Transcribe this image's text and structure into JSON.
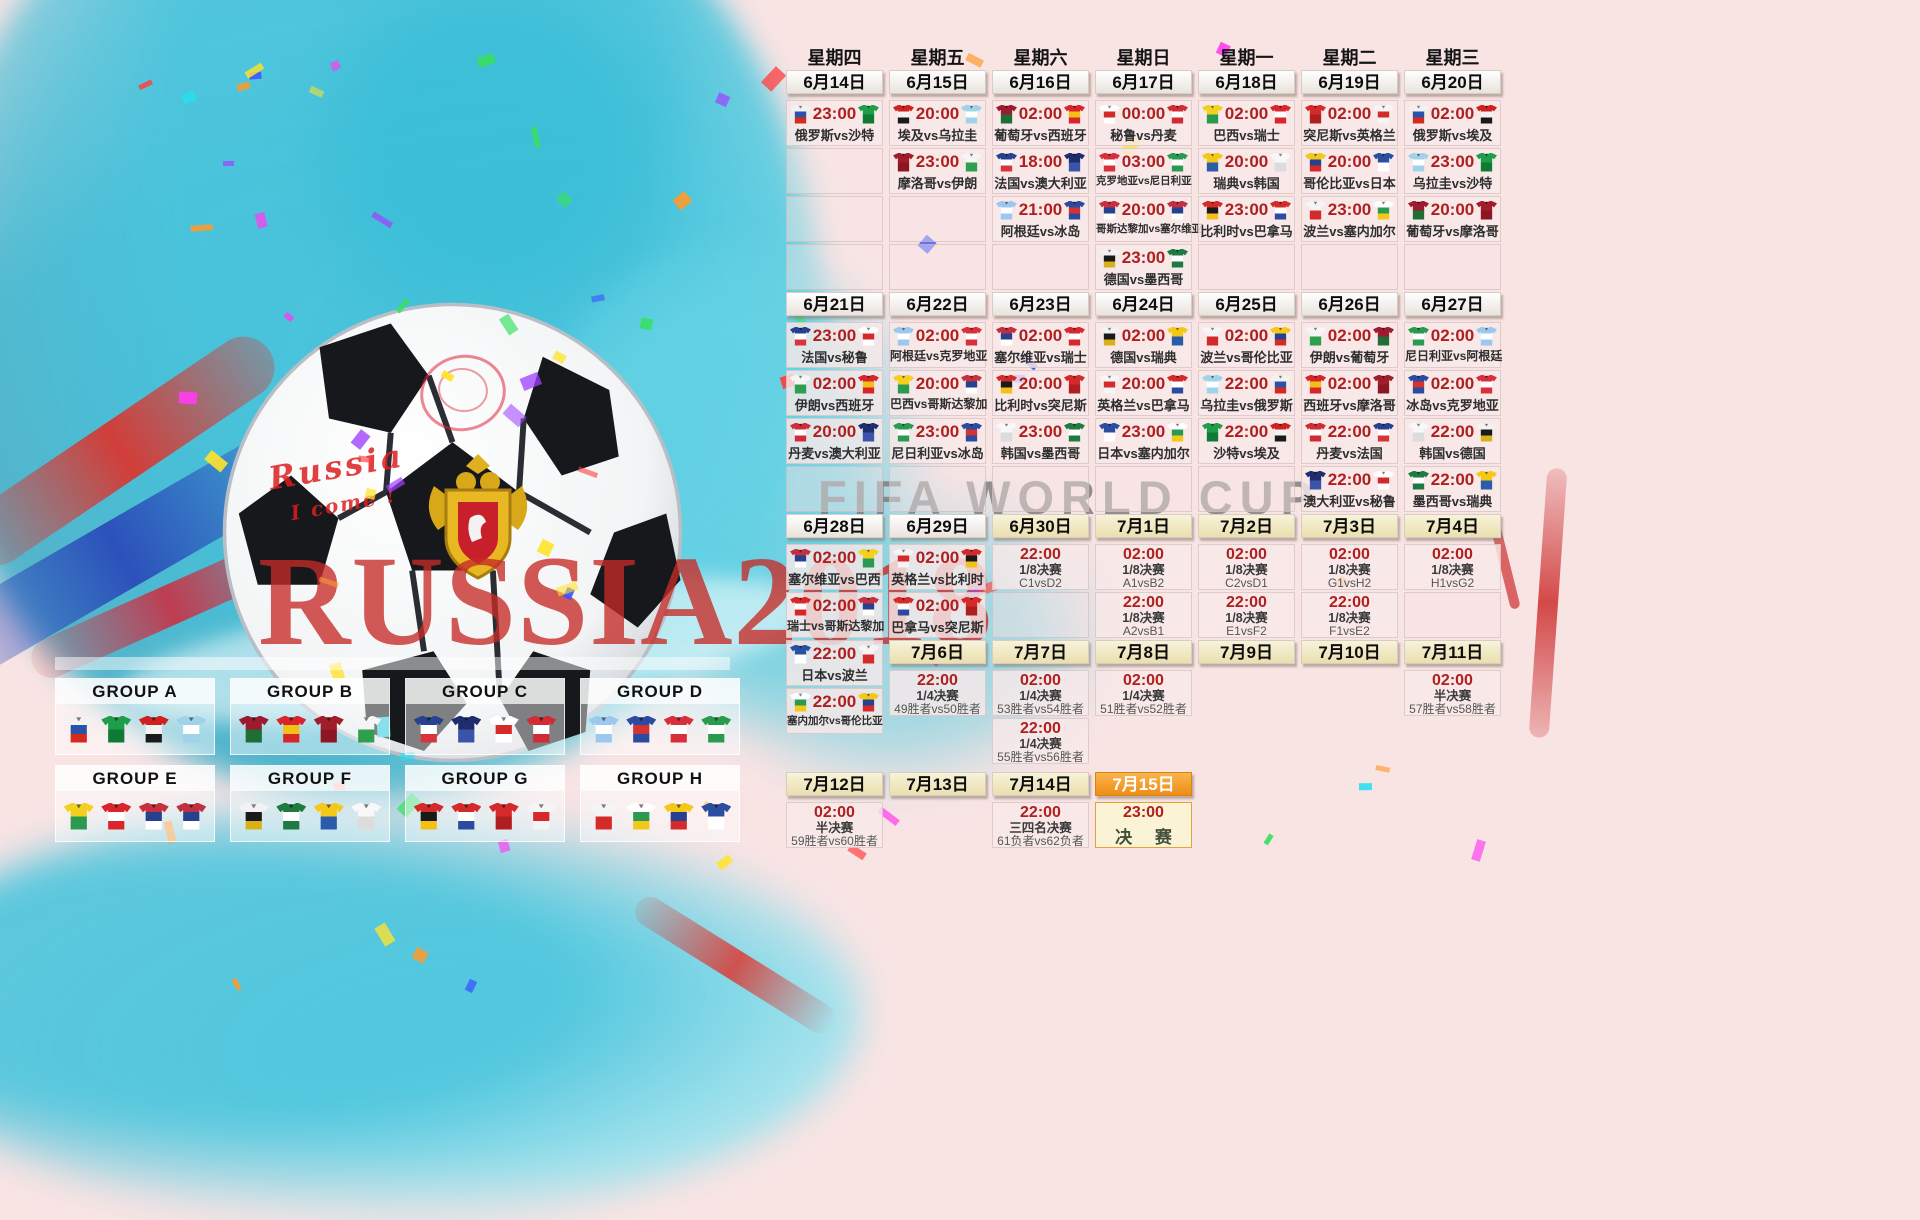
{
  "watermarks": {
    "fifa": "FIFA WORLD CUP",
    "russia": "RUSSIA2018"
  },
  "ball_graffiti": {
    "line1": "Russia",
    "line2": "I come !"
  },
  "groups": [
    {
      "name": "GROUP A",
      "teams": [
        "俄罗斯",
        "沙特",
        "埃及",
        "乌拉圭"
      ]
    },
    {
      "name": "GROUP B",
      "teams": [
        "葡萄牙",
        "西班牙",
        "摩洛哥",
        "伊朗"
      ]
    },
    {
      "name": "GROUP C",
      "teams": [
        "法国",
        "澳大利亚",
        "秘鲁",
        "丹麦"
      ]
    },
    {
      "name": "GROUP D",
      "teams": [
        "阿根廷",
        "冰岛",
        "克罗地亚",
        "尼日利亚"
      ]
    },
    {
      "name": "GROUP E",
      "teams": [
        "巴西",
        "瑞士",
        "哥斯达黎加",
        "塞尔维亚"
      ]
    },
    {
      "name": "GROUP F",
      "teams": [
        "德国",
        "墨西哥",
        "瑞典",
        "韩国"
      ]
    },
    {
      "name": "GROUP G",
      "teams": [
        "比利时",
        "巴拿马",
        "突尼斯",
        "英格兰"
      ]
    },
    {
      "name": "GROUP H",
      "teams": [
        "波兰",
        "塞内加尔",
        "哥伦比亚",
        "日本"
      ]
    }
  ],
  "calendar": {
    "columns": [
      {
        "weekday": "星期四",
        "segments": [
          {
            "t": "date",
            "label": "6月14日",
            "style": "w"
          },
          {
            "t": "match",
            "time": "23:00",
            "home": "俄罗斯",
            "away": "沙特"
          },
          {
            "t": "empty"
          },
          {
            "t": "empty"
          },
          {
            "t": "empty"
          },
          {
            "t": "date",
            "label": "6月21日",
            "style": "w"
          },
          {
            "t": "match",
            "time": "23:00",
            "home": "法国",
            "away": "秘鲁"
          },
          {
            "t": "match",
            "time": "02:00",
            "home": "伊朗",
            "away": "西班牙"
          },
          {
            "t": "match",
            "time": "20:00",
            "home": "丹麦",
            "away": "澳大利亚"
          },
          {
            "t": "empty"
          },
          {
            "t": "date",
            "label": "6月28日",
            "style": "w"
          },
          {
            "t": "match",
            "time": "02:00",
            "home": "塞尔维亚",
            "away": "巴西"
          },
          {
            "t": "match",
            "time": "02:00",
            "home": "瑞士",
            "away": "哥斯达黎加"
          },
          {
            "t": "match",
            "time": "22:00",
            "home": "日本",
            "away": "波兰"
          },
          {
            "t": "match",
            "time": "22:00",
            "home": "塞内加尔",
            "away": "哥伦比亚"
          },
          {
            "t": "week5"
          },
          {
            "t": "date",
            "label": "7月12日",
            "style": "y"
          },
          {
            "t": "ko",
            "time": "02:00",
            "stage": "半决赛",
            "teams": "59胜者vs60胜者"
          }
        ]
      },
      {
        "weekday": "星期五",
        "segments": [
          {
            "t": "date",
            "label": "6月15日",
            "style": "w"
          },
          {
            "t": "match",
            "time": "20:00",
            "home": "埃及",
            "away": "乌拉圭"
          },
          {
            "t": "match",
            "time": "23:00",
            "home": "摩洛哥",
            "away": "伊朗"
          },
          {
            "t": "empty"
          },
          {
            "t": "empty"
          },
          {
            "t": "date",
            "label": "6月22日",
            "style": "w"
          },
          {
            "t": "match",
            "time": "02:00",
            "home": "阿根廷",
            "away": "克罗地亚"
          },
          {
            "t": "match",
            "time": "20:00",
            "home": "巴西",
            "away": "哥斯达黎加"
          },
          {
            "t": "match",
            "time": "23:00",
            "home": "尼日利亚",
            "away": "冰岛"
          },
          {
            "t": "empty"
          },
          {
            "t": "date",
            "label": "6月29日",
            "style": "w"
          },
          {
            "t": "match",
            "time": "02:00",
            "home": "英格兰",
            "away": "比利时"
          },
          {
            "t": "match",
            "time": "02:00",
            "home": "巴拿马",
            "away": "突尼斯"
          },
          {
            "t": "date",
            "label": "7月6日",
            "style": "y"
          },
          {
            "t": "ko",
            "time": "22:00",
            "stage": "1/4决赛",
            "teams": "49胜者vs50胜者"
          },
          {
            "t": "week5"
          },
          {
            "t": "date",
            "label": "7月13日",
            "style": "y"
          }
        ]
      },
      {
        "weekday": "星期六",
        "segments": [
          {
            "t": "date",
            "label": "6月16日",
            "style": "w"
          },
          {
            "t": "match",
            "time": "02:00",
            "home": "葡萄牙",
            "away": "西班牙"
          },
          {
            "t": "match",
            "time": "18:00",
            "home": "法国",
            "away": "澳大利亚"
          },
          {
            "t": "match",
            "time": "21:00",
            "home": "阿根廷",
            "away": "冰岛"
          },
          {
            "t": "empty"
          },
          {
            "t": "date",
            "label": "6月23日",
            "style": "w"
          },
          {
            "t": "match",
            "time": "02:00",
            "home": "塞尔维亚",
            "away": "瑞士"
          },
          {
            "t": "match",
            "time": "20:00",
            "home": "比利时",
            "away": "突尼斯"
          },
          {
            "t": "match",
            "time": "23:00",
            "home": "韩国",
            "away": "墨西哥"
          },
          {
            "t": "empty"
          },
          {
            "t": "date",
            "label": "6月30日",
            "style": "y"
          },
          {
            "t": "ko",
            "time": "22:00",
            "stage": "1/8决赛",
            "teams": "C1vsD2"
          },
          {
            "t": "empty"
          },
          {
            "t": "date",
            "label": "7月7日",
            "style": "y"
          },
          {
            "t": "ko",
            "time": "02:00",
            "stage": "1/4决赛",
            "teams": "53胜者vs54胜者"
          },
          {
            "t": "ko",
            "time": "22:00",
            "stage": "1/4决赛",
            "teams": "55胜者vs56胜者"
          },
          {
            "t": "week5"
          },
          {
            "t": "date",
            "label": "7月14日",
            "style": "y"
          },
          {
            "t": "ko",
            "time": "22:00",
            "stage": "三四名决赛",
            "teams": "61负者vs62负者"
          }
        ]
      },
      {
        "weekday": "星期日",
        "segments": [
          {
            "t": "date",
            "label": "6月17日",
            "style": "w"
          },
          {
            "t": "match",
            "time": "00:00",
            "home": "秘鲁",
            "away": "丹麦"
          },
          {
            "t": "match",
            "time": "03:00",
            "home": "克罗地亚",
            "away": "尼日利亚"
          },
          {
            "t": "match",
            "time": "20:00",
            "home": "哥斯达黎加",
            "away": "塞尔维亚"
          },
          {
            "t": "match",
            "time": "23:00",
            "home": "德国",
            "away": "墨西哥"
          },
          {
            "t": "date",
            "label": "6月24日",
            "style": "w"
          },
          {
            "t": "match",
            "time": "02:00",
            "home": "德国",
            "away": "瑞典"
          },
          {
            "t": "match",
            "time": "20:00",
            "home": "英格兰",
            "away": "巴拿马"
          },
          {
            "t": "match",
            "time": "23:00",
            "home": "日本",
            "away": "塞内加尔"
          },
          {
            "t": "empty"
          },
          {
            "t": "date",
            "label": "7月1日",
            "style": "y"
          },
          {
            "t": "ko",
            "time": "02:00",
            "stage": "1/8决赛",
            "teams": "A1vsB2"
          },
          {
            "t": "ko",
            "time": "22:00",
            "stage": "1/8决赛",
            "teams": "A2vsB1"
          },
          {
            "t": "date",
            "label": "7月8日",
            "style": "y"
          },
          {
            "t": "ko",
            "time": "02:00",
            "stage": "1/4决赛",
            "teams": "51胜者vs52胜者"
          },
          {
            "t": "week5"
          },
          {
            "t": "date",
            "label": "7月15日",
            "style": "o"
          },
          {
            "t": "final",
            "time": "23:00",
            "label": "决 赛"
          }
        ]
      },
      {
        "weekday": "星期一",
        "segments": [
          {
            "t": "date",
            "label": "6月18日",
            "style": "w"
          },
          {
            "t": "match",
            "time": "02:00",
            "home": "巴西",
            "away": "瑞士"
          },
          {
            "t": "match",
            "time": "20:00",
            "home": "瑞典",
            "away": "韩国"
          },
          {
            "t": "match",
            "time": "23:00",
            "home": "比利时",
            "away": "巴拿马"
          },
          {
            "t": "empty"
          },
          {
            "t": "date",
            "label": "6月25日",
            "style": "w"
          },
          {
            "t": "match",
            "time": "02:00",
            "home": "波兰",
            "away": "哥伦比亚"
          },
          {
            "t": "match",
            "time": "22:00",
            "home": "乌拉圭",
            "away": "俄罗斯"
          },
          {
            "t": "match",
            "time": "22:00",
            "home": "沙特",
            "away": "埃及"
          },
          {
            "t": "empty"
          },
          {
            "t": "date",
            "label": "7月2日",
            "style": "y"
          },
          {
            "t": "ko",
            "time": "02:00",
            "stage": "1/8决赛",
            "teams": "C2vsD1"
          },
          {
            "t": "ko",
            "time": "22:00",
            "stage": "1/8决赛",
            "teams": "E1vsF2"
          },
          {
            "t": "date",
            "label": "7月9日",
            "style": "y"
          }
        ]
      },
      {
        "weekday": "星期二",
        "segments": [
          {
            "t": "date",
            "label": "6月19日",
            "style": "w"
          },
          {
            "t": "match",
            "time": "02:00",
            "home": "突尼斯",
            "away": "英格兰"
          },
          {
            "t": "match",
            "time": "20:00",
            "home": "哥伦比亚",
            "away": "日本"
          },
          {
            "t": "match",
            "time": "23:00",
            "home": "波兰",
            "away": "塞内加尔"
          },
          {
            "t": "empty"
          },
          {
            "t": "date",
            "label": "6月26日",
            "style": "w"
          },
          {
            "t": "match",
            "time": "02:00",
            "home": "伊朗",
            "away": "葡萄牙"
          },
          {
            "t": "match",
            "time": "02:00",
            "home": "西班牙",
            "away": "摩洛哥"
          },
          {
            "t": "match",
            "time": "22:00",
            "home": "丹麦",
            "away": "法国"
          },
          {
            "t": "match",
            "time": "22:00",
            "home": "澳大利亚",
            "away": "秘鲁"
          },
          {
            "t": "date",
            "label": "7月3日",
            "style": "y"
          },
          {
            "t": "ko",
            "time": "02:00",
            "stage": "1/8决赛",
            "teams": "G1vsH2"
          },
          {
            "t": "ko",
            "time": "22:00",
            "stage": "1/8决赛",
            "teams": "F1vsE2"
          },
          {
            "t": "date",
            "label": "7月10日",
            "style": "y"
          }
        ]
      },
      {
        "weekday": "星期三",
        "segments": [
          {
            "t": "date",
            "label": "6月20日",
            "style": "w"
          },
          {
            "t": "match",
            "time": "02:00",
            "home": "俄罗斯",
            "away": "埃及"
          },
          {
            "t": "match",
            "time": "23:00",
            "home": "乌拉圭",
            "away": "沙特"
          },
          {
            "t": "match",
            "time": "20:00",
            "home": "葡萄牙",
            "away": "摩洛哥"
          },
          {
            "t": "empty"
          },
          {
            "t": "date",
            "label": "6月27日",
            "style": "w"
          },
          {
            "t": "match",
            "time": "02:00",
            "home": "尼日利亚",
            "away": "阿根廷"
          },
          {
            "t": "match",
            "time": "02:00",
            "home": "冰岛",
            "away": "克罗地亚"
          },
          {
            "t": "match",
            "time": "22:00",
            "home": "韩国",
            "away": "德国"
          },
          {
            "t": "match",
            "time": "22:00",
            "home": "墨西哥",
            "away": "瑞典"
          },
          {
            "t": "date",
            "label": "7月4日",
            "style": "y"
          },
          {
            "t": "ko",
            "time": "02:00",
            "stage": "1/8决赛",
            "teams": "H1vsG2"
          },
          {
            "t": "empty"
          },
          {
            "t": "date",
            "label": "7月11日",
            "style": "y"
          },
          {
            "t": "ko",
            "time": "02:00",
            "stage": "半决赛",
            "teams": "57胜者vs58胜者"
          }
        ]
      }
    ]
  },
  "team_colors": {
    "俄罗斯": [
      "#f2f2f2",
      "#2a52a8",
      "#d52b1e"
    ],
    "沙特": [
      "#1f9e4a",
      "#0e7a33"
    ],
    "埃及": [
      "#d02020",
      "#f2f2f2",
      "#1a1a1a"
    ],
    "乌拉圭": [
      "#9fd3ea",
      "#ffffff",
      "#9fd3ea"
    ],
    "摩洛哥": [
      "#a11d2c",
      "#8c1624"
    ],
    "伊朗": [
      "#f5f5f5",
      "#2e9e4f"
    ],
    "葡萄牙": [
      "#9c1b30",
      "#1f6e35"
    ],
    "西班牙": [
      "#d8252b",
      "#f3c018",
      "#d8252b"
    ],
    "法国": [
      "#27418f",
      "#ffffff",
      "#d8353a"
    ],
    "澳大利亚": [
      "#1f2d6e",
      "#3b53a8"
    ],
    "秘鲁": [
      "#ffffff",
      "#d42a2a",
      "#ffffff"
    ],
    "丹麦": [
      "#d12b36",
      "#ffffff",
      "#d12b36"
    ],
    "阿根廷": [
      "#9cc8f0",
      "#ffffff",
      "#9cc8f0"
    ],
    "冰岛": [
      "#2b4ba0",
      "#d43333",
      "#2b4ba0"
    ],
    "克罗地亚": [
      "#d8303a",
      "#ffffff",
      "#d8303a"
    ],
    "尼日利亚": [
      "#2a9a50",
      "#ffffff",
      "#2a9a50"
    ],
    "巴西": [
      "#f3d020",
      "#2a9a50"
    ],
    "瑞士": [
      "#d8262c",
      "#ffffff",
      "#d8262c"
    ],
    "哥斯达黎加": [
      "#c8303d",
      "#27418f",
      "#ffffff"
    ],
    "塞尔维亚": [
      "#c03040",
      "#27418f",
      "#ffffff"
    ],
    "德国": [
      "#f2f2f2",
      "#1a1a1a",
      "#d8b018"
    ],
    "墨西哥": [
      "#1e7a40",
      "#ffffff",
      "#1e7a40"
    ],
    "瑞典": [
      "#f3c818",
      "#2a5caa"
    ],
    "韩国": [
      "#f8f8f8",
      "#dcdcdc"
    ],
    "比利时": [
      "#d42a2a",
      "#1a1a1a",
      "#f3c018"
    ],
    "巴拿马": [
      "#d42a2a",
      "#ffffff",
      "#2b4ba0"
    ],
    "突尼斯": [
      "#d42a2a",
      "#b01f1f"
    ],
    "英格兰": [
      "#f5f5f5",
      "#d42a2a",
      "#f5f5f5"
    ],
    "波兰": [
      "#f5f5f5",
      "#d42a2a"
    ],
    "塞内加尔": [
      "#ffffff",
      "#2a9a50",
      "#f3c818"
    ],
    "哥伦比亚": [
      "#f3c818",
      "#27418f",
      "#d42a2a"
    ],
    "日本": [
      "#2a4fa0",
      "#ffffff"
    ]
  },
  "confetti_colors": [
    "#ffe32a",
    "#ff3df0",
    "#27e0f0",
    "#3b53ff",
    "#ff4040",
    "#37e060",
    "#a040ff",
    "#ff9a2a"
  ]
}
